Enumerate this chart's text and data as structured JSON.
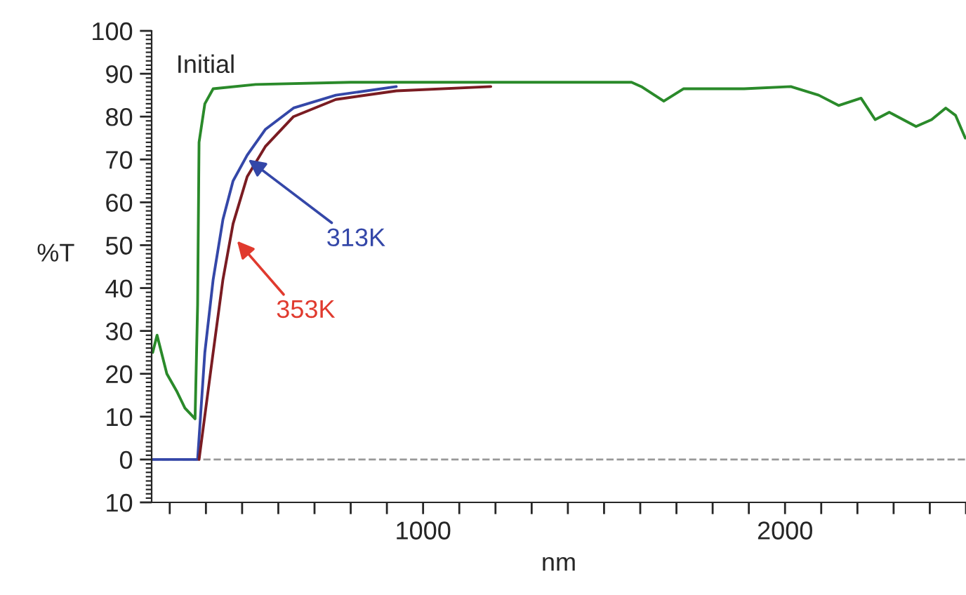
{
  "chart_data": {
    "type": "line",
    "xlabel": "nm",
    "ylabel": "%T",
    "xlim": [
      250,
      2500
    ],
    "ylim": [
      -10,
      100
    ],
    "xticks": [
      {
        "value": 300,
        "label": null
      },
      {
        "value": 400,
        "label": null
      },
      {
        "value": 500,
        "label": null
      },
      {
        "value": 600,
        "label": null
      },
      {
        "value": 700,
        "label": null
      },
      {
        "value": 800,
        "label": null
      },
      {
        "value": 900,
        "label": null
      },
      1000,
      {
        "value": 1100,
        "label": null
      },
      {
        "value": 1200,
        "label": null
      },
      {
        "value": 1300,
        "label": null
      },
      {
        "value": 1400,
        "label": null
      },
      {
        "value": 1500,
        "label": null
      },
      {
        "value": 1600,
        "label": null
      },
      {
        "value": 1700,
        "label": null
      },
      {
        "value": 1800,
        "label": null
      },
      {
        "value": 1900,
        "label": null
      },
      2000,
      {
        "value": 2100,
        "label": null
      },
      {
        "value": 2200,
        "label": null
      },
      {
        "value": 2300,
        "label": null
      },
      {
        "value": 2400,
        "label": null
      },
      {
        "value": 2500,
        "label": null
      }
    ],
    "yticks": [
      {
        "value": -10,
        "label": "10"
      },
      0,
      10,
      20,
      30,
      40,
      50,
      60,
      70,
      80,
      90,
      100
    ],
    "grid": false,
    "legend": false,
    "marker": "none",
    "line_style": "solid",
    "ref_lines": [
      {
        "axis": "y",
        "value": 0,
        "color": "#999999",
        "line_style": "dashed"
      }
    ],
    "annotations": [
      "Initial",
      {
        "text": "313K",
        "x": 517,
        "y": 70
      },
      {
        "text": "353K",
        "x": 486,
        "y": 51
      }
    ],
    "series": [
      {
        "color": "#2a8a2a",
        "x": [
          253,
          265,
          292,
          319,
          342,
          370,
          377,
          381,
          397,
          420,
          537,
          800,
          1109,
          1576,
          1603,
          1665,
          1720,
          1887,
          2016,
          2093,
          2148,
          2210,
          2249,
          2288,
          2362,
          2405,
          2444,
          2471,
          2498
        ],
        "values": [
          25,
          29,
          20,
          16,
          12,
          9.5,
          36,
          74,
          83,
          86.5,
          87.5,
          88,
          88,
          88,
          87,
          83.6,
          86.5,
          86.5,
          87,
          85,
          82.6,
          84.3,
          79.3,
          81,
          77.7,
          79.3,
          82,
          80.3,
          75
        ]
      },
      {
        "color": "#3447a8",
        "x": [
          253,
          377,
          397,
          420,
          447,
          475,
          514,
          564,
          642,
          759,
          926
        ],
        "values": [
          0,
          0,
          25,
          42,
          56,
          65,
          71,
          77,
          82,
          85,
          87
        ]
      },
      {
        "color": "#7a1c22",
        "x": [
          381,
          420,
          447,
          475,
          514,
          564,
          642,
          759,
          926,
          1187
        ],
        "values": [
          0,
          25,
          42,
          55,
          66,
          73,
          80,
          84,
          86,
          87
        ]
      }
    ]
  }
}
